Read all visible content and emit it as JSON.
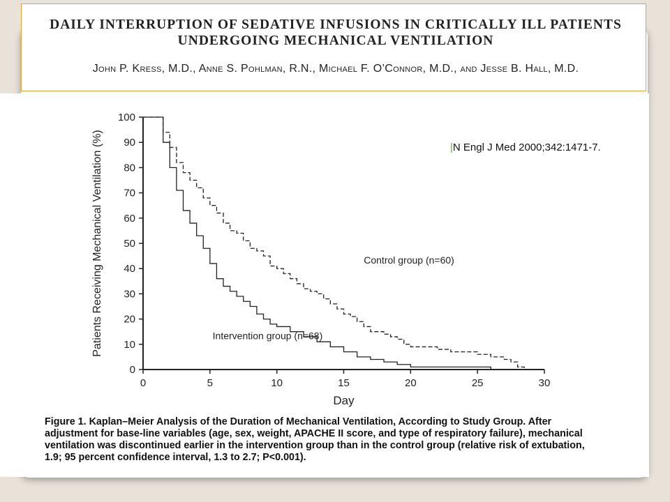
{
  "paper": {
    "title": "Daily Interruption of Sedative Infusions in Critically Ill Patients Undergoing Mechanical Ventilation",
    "authors": "John P. Kress, M.D., Anne S. Pohlman, R.N., Michael F. O’Connor, M.D., and Jesse B. Hall, M.D."
  },
  "citation": {
    "mark": "|",
    "text": "N Engl J Med 2000;342:1471-7."
  },
  "caption": {
    "label": "Figure 1.",
    "title": " Kaplan–Meier Analysis of the Duration of Mechanical Ventilation, According to Study Group.",
    "body": "After adjustment for base-line variables (age, sex, weight, APACHE II score, and type of respiratory failure), mechanical ventilation was discontinued earlier in the intervention group than in the control group (relative risk of extubation, 1.9; 95 percent confidence interval, 1.3 to 2.7; P<0.001)."
  },
  "colors": {
    "frame_border": "#f0a030",
    "background": "#e8e2d9",
    "ink": "#222222"
  },
  "chart_data": {
    "type": "line",
    "xlabel": "Day",
    "ylabel": "Patients Receiving Mechanical Ventilation (%)",
    "xlim": [
      0,
      30
    ],
    "ylim": [
      0,
      100
    ],
    "xticks": [
      0,
      5,
      10,
      15,
      20,
      25,
      30
    ],
    "yticks": [
      0,
      10,
      20,
      30,
      40,
      50,
      60,
      70,
      80,
      90,
      100
    ],
    "grid": false,
    "series": [
      {
        "name": "Control group (n=60)",
        "style": "dashed-step",
        "x": [
          0,
          1,
          1.5,
          2,
          2.5,
          3,
          3.5,
          4,
          4.5,
          5,
          5.5,
          6,
          6.5,
          7,
          7.5,
          8,
          8.5,
          9,
          9.5,
          10,
          10.5,
          11,
          11.5,
          12,
          12.5,
          13,
          13.5,
          14,
          14.5,
          15,
          15.5,
          16,
          16.5,
          17,
          17.5,
          18,
          18.5,
          19,
          19.5,
          20,
          21,
          22,
          23,
          24,
          25,
          26,
          27,
          27.5,
          28,
          28.5
        ],
        "y": [
          100,
          100,
          94,
          88,
          82,
          78,
          75,
          72,
          68,
          65,
          62,
          58,
          55,
          54,
          51,
          48,
          47,
          45,
          41,
          40,
          38,
          36,
          34,
          32,
          31,
          30,
          28,
          26,
          24,
          22,
          21,
          19,
          17,
          15,
          15,
          14,
          13,
          12,
          10,
          9,
          9,
          8,
          7,
          7,
          6,
          5,
          4,
          3,
          1,
          0
        ]
      },
      {
        "name": "Intervention group (n=68)",
        "style": "solid-step",
        "x": [
          0,
          1,
          1.5,
          2,
          2.5,
          3,
          3.5,
          4,
          4.5,
          5,
          5.5,
          6,
          6.5,
          7,
          7.5,
          8,
          8.5,
          9,
          9.5,
          10,
          11,
          12,
          13,
          14,
          15,
          16,
          17,
          18,
          19,
          20,
          22,
          24,
          26,
          28
        ],
        "y": [
          100,
          100,
          90,
          80,
          71,
          63,
          58,
          53,
          48,
          42,
          36,
          33,
          31,
          29,
          27,
          25,
          22,
          20,
          18,
          17,
          15,
          13,
          11,
          9,
          7,
          5,
          4,
          3,
          2,
          1,
          1,
          1,
          0,
          0
        ]
      }
    ],
    "annotations": [
      {
        "text": "Control group (n=60)",
        "x": 16.5,
        "y": 42
      },
      {
        "text": "Intervention group (n=68)",
        "x": 5.2,
        "y": 12
      }
    ]
  }
}
